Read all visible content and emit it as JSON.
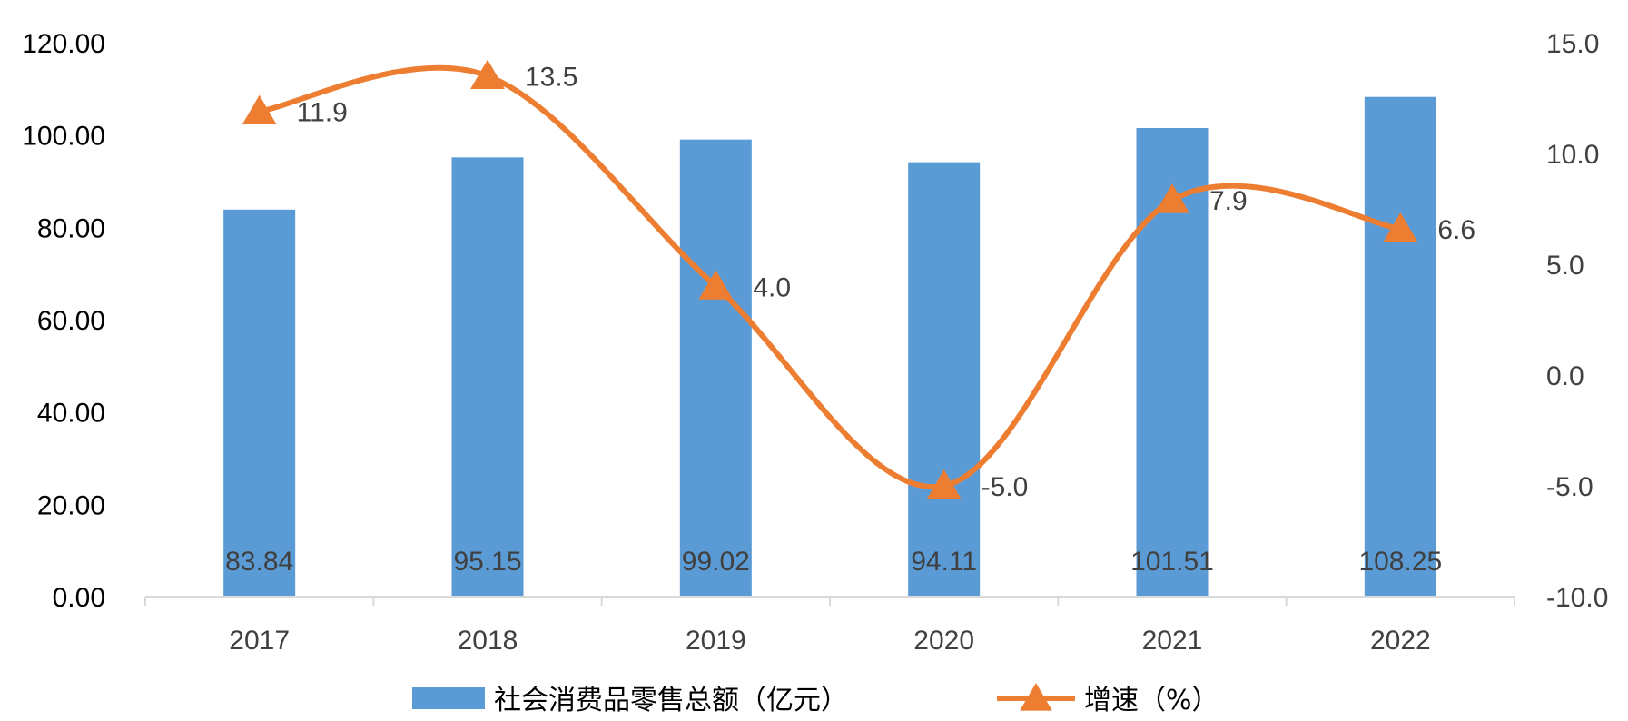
{
  "chart_data": {
    "type": "bar",
    "categories": [
      "2017",
      "2018",
      "2019",
      "2020",
      "2021",
      "2022"
    ],
    "series": [
      {
        "name": "社会消费品零售总额（亿元）",
        "type": "bar",
        "axis": "left",
        "values": [
          83.84,
          95.15,
          99.02,
          94.11,
          101.51,
          108.25
        ],
        "labels": [
          "83.84",
          "95.15",
          "99.02",
          "94.11",
          "101.51",
          "108.25"
        ],
        "color": "#5B9BD5"
      },
      {
        "name": "增速（%）",
        "type": "line",
        "axis": "right",
        "values": [
          11.9,
          13.5,
          4.0,
          -5.0,
          7.9,
          6.6
        ],
        "labels": [
          "11.9",
          "13.5",
          "4.0",
          "-5.0",
          "7.9",
          "6.6"
        ],
        "color": "#ED7D31",
        "marker": "triangle"
      }
    ],
    "y_left": {
      "ylim": [
        0,
        120
      ],
      "ticks": [
        "0.00",
        "20.00",
        "40.00",
        "60.00",
        "80.00",
        "100.00",
        "120.00"
      ]
    },
    "y_right": {
      "ylim": [
        -10,
        15
      ],
      "ticks": [
        "-10.0",
        "-5.0",
        "0.0",
        "5.0",
        "10.0",
        "15.0"
      ]
    },
    "title": "",
    "xlabel": "",
    "ylabel": "",
    "grid": false,
    "legend": "bottom"
  }
}
